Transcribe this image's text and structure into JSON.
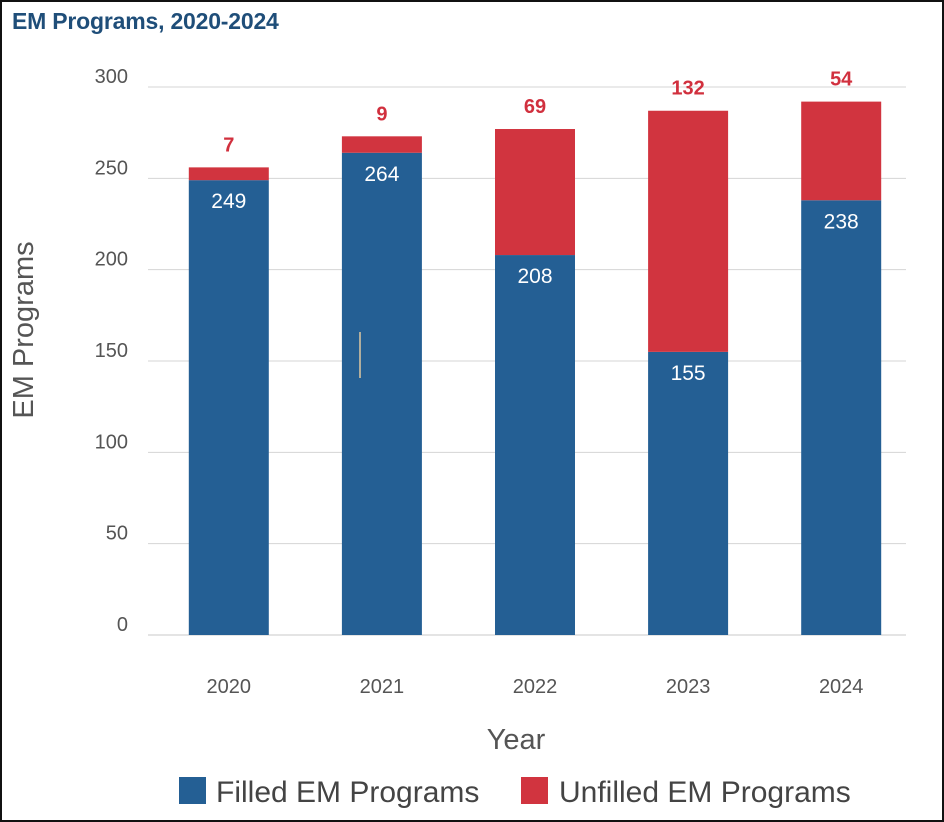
{
  "chart_data": {
    "type": "bar",
    "stacked": true,
    "title": "EM Programs, 2020-2024",
    "xlabel": "Year",
    "ylabel": "EM Programs",
    "ylim": [
      0,
      300
    ],
    "yticks": [
      0,
      50,
      100,
      150,
      200,
      250,
      300
    ],
    "categories": [
      "2020",
      "2021",
      "2022",
      "2023",
      "2024"
    ],
    "series": [
      {
        "name": "Filled EM Programs",
        "values": [
          249,
          264,
          208,
          155,
          238
        ],
        "color": "#245f94"
      },
      {
        "name": "Unfilled EM Programs",
        "values": [
          7,
          9,
          69,
          132,
          54
        ],
        "color": "#d1343f"
      }
    ],
    "grid": true,
    "legend_position": "bottom"
  }
}
